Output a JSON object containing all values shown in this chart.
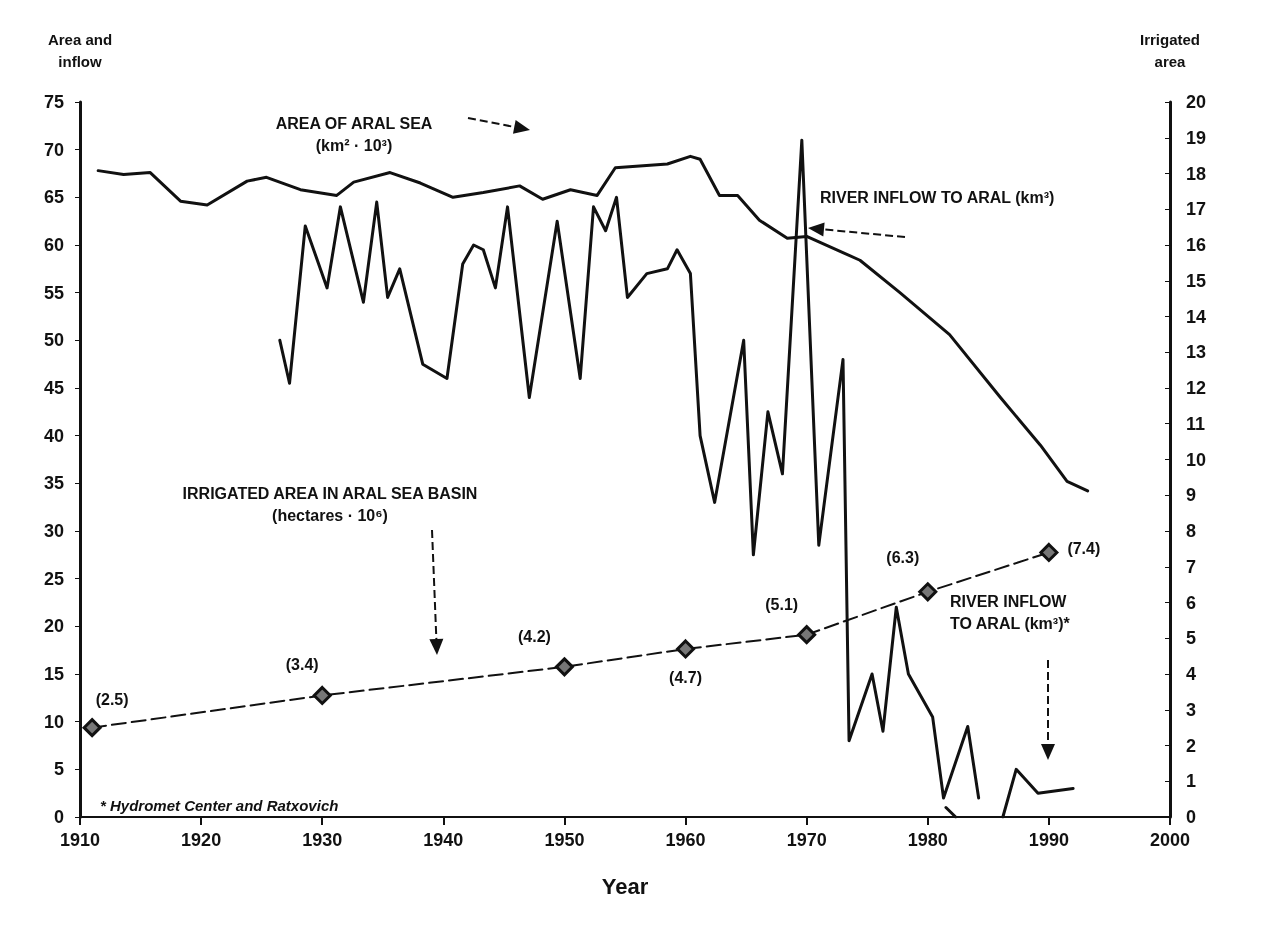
{
  "chart_data": {
    "type": "line",
    "xlabel": "Year",
    "ylabel": "Area and\ninflow",
    "y2label": "Irrigated\narea",
    "xlim": [
      1910,
      2000
    ],
    "xticks": [
      1910,
      1920,
      1930,
      1940,
      1950,
      1960,
      1970,
      1980,
      1990,
      2000
    ],
    "ylim": [
      0,
      75
    ],
    "yticks": [
      0,
      5,
      10,
      15,
      20,
      25,
      30,
      35,
      40,
      45,
      50,
      55,
      60,
      65,
      70,
      75
    ],
    "y2lim": [
      0,
      20
    ],
    "y2ticks": [
      0,
      1,
      2,
      3,
      4,
      5,
      6,
      7,
      8,
      9,
      10,
      11,
      12,
      13,
      14,
      15,
      16,
      17,
      18,
      19,
      20
    ],
    "grid": false,
    "series": [
      {
        "color": "#111111",
        "marker": "none",
        "line_style": "solid",
        "x": [
          1911.5,
          1913.6,
          1915.8,
          1918.3,
          1920.5,
          1923.8,
          1925.4,
          1928.2,
          1931.2,
          1932.6,
          1935.6,
          1938.1,
          1940.8,
          1943.3,
          1946.3,
          1948.2,
          1950.5,
          1952.7,
          1954.2,
          1958.5,
          1960.4,
          1961.2,
          1962.8,
          1964.3,
          1966.1,
          1968.4,
          1970,
          1974.4,
          1977.7,
          1981.8,
          1986,
          1989.3,
          1991.5,
          1993.2
        ],
        "values": [
          67.8,
          67.4,
          67.6,
          64.6,
          64.2,
          66.7,
          67.1,
          65.8,
          65.2,
          66.6,
          67.6,
          66.5,
          65,
          65.5,
          66.2,
          64.8,
          65.8,
          65.2,
          68.1,
          68.5,
          69.3,
          69,
          65.2,
          65.2,
          62.6,
          60.7,
          60.9,
          58.4,
          55,
          50.6,
          44,
          39,
          35.2,
          34.2
        ]
      },
      {
        "color": "#111111",
        "marker": "none",
        "line_style": "solid",
        "x": [
          1926.5,
          1927.3,
          1928.6,
          1930.4,
          1931.5,
          1933.4,
          1934.5,
          1935.4,
          1936.4,
          1938.3,
          1940.3,
          1941.6,
          1942.5,
          1943.3,
          1944.3,
          1945.3,
          1947.1,
          1949.4,
          1951.3,
          1952.4,
          1953.4,
          1954.3,
          1955.2,
          1956.8,
          1958.5,
          1959.3,
          1960.4,
          1961.2,
          1962.4,
          1964.8,
          1965.6,
          1966.8,
          1968,
          1969.6,
          1971,
          1973,
          1973.5,
          1975.4,
          1976.3,
          1977.4,
          1978.4,
          1980.4,
          1981.3,
          1983.3,
          1984.2
        ],
        "values": [
          50,
          45.5,
          62,
          55.5,
          64,
          54,
          64.5,
          54.5,
          57.5,
          47.5,
          46,
          58,
          60,
          59.5,
          55.5,
          64,
          44,
          62.5,
          46,
          64,
          61.5,
          65,
          54.5,
          57,
          57.5,
          59.5,
          57,
          40,
          33,
          50,
          27.5,
          42.5,
          36,
          71,
          28.5,
          48,
          8,
          15,
          9,
          22,
          15,
          10.5,
          2,
          9.5,
          2
        ]
      },
      {
        "color": "#111111",
        "marker": "none",
        "line_style": "solid",
        "x": [
          1981.5,
          1982.3
        ],
        "values": [
          1,
          0
        ]
      },
      {
        "color": "#111111",
        "marker": "none",
        "line_style": "solid",
        "x": [
          1986.2,
          1987.3,
          1989.1,
          1992
        ],
        "values": [
          0,
          5,
          2.5,
          3
        ]
      },
      {
        "axis": "y2",
        "color": "#111111",
        "marker": "diamond",
        "line_style": "dashed",
        "x": [
          1911,
          1930,
          1950,
          1960,
          1970,
          1980,
          1990
        ],
        "values": [
          2.5,
          3.4,
          4.2,
          4.7,
          5.1,
          6.3,
          7.4
        ],
        "value_labels": [
          "(2.5)",
          "(3.4)",
          "(4.2)",
          "(4.7)",
          "(5.1)",
          "(6.3)",
          "(7.4)"
        ]
      }
    ],
    "annotations": [
      "AREA OF ARAL SEA\n(km² · 10³)",
      "RIVER INFLOW TO ARAL (km³)",
      "IRRIGATED AREA IN ARAL SEA BASIN\n(hectares · 10⁶)",
      "RIVER INFLOW\nTO ARAL (km³)*",
      "* Hydromet Center and Ratxovich"
    ]
  }
}
